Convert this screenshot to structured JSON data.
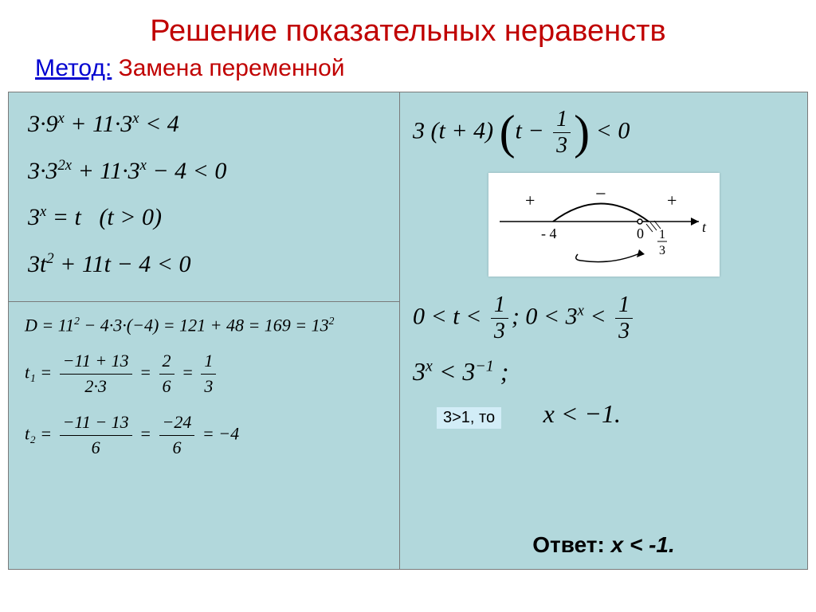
{
  "colors": {
    "title": "#c00000",
    "method_label": "#0000d0",
    "method_text": "#c00000",
    "slide_bg": "#b2d8dc",
    "box_border": "#7a7a7a",
    "text": "#000000",
    "cond_bg": "#d2edf7"
  },
  "title": "Решение показательных неравенств",
  "subtitle": {
    "label": "Метод:",
    "text": " Замена переменной"
  },
  "left_upper": {
    "line1_html": "3·9<sup><i>x</i></sup> + 11·3<sup><i>x</i></sup> &lt; 4",
    "line2_html": "3·3<sup>2<i>x</i></sup> + 11·3<sup><i>x</i></sup> − 4 &lt; 0",
    "line3_html": "3<sup><i>x</i></sup> = <i>t</i> &nbsp; (<i>t</i> &gt; 0)",
    "line4_html": "3<i>t</i><sup>2</sup> + 11<i>t</i> − 4 &lt; 0"
  },
  "left_lower": {
    "disc_html": "<i>D</i> = 11<sup>2</sup> − 4·3·(−4) = 121 + 48 = 169 = 13<sup>2</sup>",
    "t1": {
      "lhs": "t₁ =",
      "n1": "−11 + 13",
      "d1": "2·3",
      "n2": "2",
      "d2": "6",
      "n3": "1",
      "d3": "3"
    },
    "t2": {
      "lhs": "t₂ =",
      "n1": "−11 − 13",
      "d1": "6",
      "n2": "−24",
      "d2": "6",
      "rhs": "= −4"
    }
  },
  "right": {
    "factor": {
      "pre": "3 (t + 4)",
      "mid_n": "1",
      "mid_d": "3",
      "post": " < 0",
      "t_minus": "t −"
    },
    "signs": {
      "plus1": "+",
      "minus": "−",
      "plus2": "+",
      "axis_var": "t",
      "tick1": "- 4",
      "tick2": "0",
      "tick3_n": "1",
      "tick3_d": "3"
    },
    "range1": {
      "a": "0 < t <",
      "n": "1",
      "d": "3",
      "sep": ";",
      "b": "0 < 3",
      "exp": "x",
      "lt": " <",
      "n2": "1",
      "d2": "3"
    },
    "range2": {
      "a": "3",
      "exp": "x",
      "lt": " < 3",
      "exp2": "−1",
      "semi": ";"
    },
    "cond": "3>1, то",
    "final": "x < −1.",
    "answer_label": "Ответ:",
    "answer_val": " x < -1."
  }
}
